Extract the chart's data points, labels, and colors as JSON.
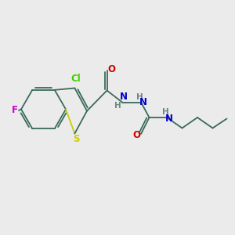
{
  "background_color": "#ebebeb",
  "figsize": [
    3.0,
    3.0
  ],
  "dpi": 100,
  "bond_color": "#3a6b5a",
  "bond_lw": 1.3,
  "dbo": 0.007,
  "atom_colors": {
    "F": "#cc00cc",
    "Cl": "#44cc00",
    "S": "#cccc00",
    "O": "#cc0000",
    "N": "#0000cc",
    "H": "#6a8a7a",
    "C": "#3a6b5a"
  }
}
